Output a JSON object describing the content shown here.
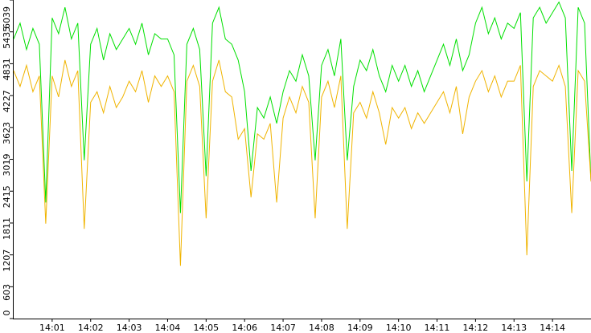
{
  "chart_data": {
    "type": "line",
    "x": [
      "14:00:00",
      "14:00:10",
      "14:00:20",
      "14:00:30",
      "14:00:40",
      "14:00:50",
      "14:01:00",
      "14:01:10",
      "14:01:20",
      "14:01:30",
      "14:01:40",
      "14:01:50",
      "14:02:00",
      "14:02:10",
      "14:02:20",
      "14:02:30",
      "14:02:40",
      "14:02:50",
      "14:03:00",
      "14:03:10",
      "14:03:20",
      "14:03:30",
      "14:03:40",
      "14:03:50",
      "14:04:00",
      "14:04:10",
      "14:04:20",
      "14:04:30",
      "14:04:40",
      "14:04:50",
      "14:05:00",
      "14:05:10",
      "14:05:20",
      "14:05:30",
      "14:05:40",
      "14:05:50",
      "14:06:00",
      "14:06:10",
      "14:06:20",
      "14:06:30",
      "14:06:40",
      "14:06:50",
      "14:07:00",
      "14:07:10",
      "14:07:20",
      "14:07:30",
      "14:07:40",
      "14:07:50",
      "14:08:00",
      "14:08:10",
      "14:08:20",
      "14:08:30",
      "14:08:40",
      "14:08:50",
      "14:09:00",
      "14:09:10",
      "14:09:20",
      "14:09:30",
      "14:09:40",
      "14:09:50",
      "14:10:00",
      "14:10:10",
      "14:10:20",
      "14:10:30",
      "14:10:40",
      "14:10:50",
      "14:11:00",
      "14:11:10",
      "14:11:20",
      "14:11:30",
      "14:11:40",
      "14:11:50",
      "14:12:00",
      "14:12:10",
      "14:12:20",
      "14:12:30",
      "14:12:40",
      "14:12:50",
      "14:13:00",
      "14:13:10",
      "14:13:20",
      "14:13:30",
      "14:13:40",
      "14:13:50",
      "14:14:00",
      "14:14:10",
      "14:14:20",
      "14:14:30",
      "14:14:40",
      "14:14:50",
      "14:15:00"
    ],
    "xlim": [
      "14:00:00",
      "14:15:00"
    ],
    "xticks": [
      "14:01",
      "14:02",
      "14:03",
      "14:04",
      "14:05",
      "14:06",
      "14:07",
      "14:08",
      "14:09",
      "14:10",
      "14:11",
      "14:12",
      "14:13",
      "14:14"
    ],
    "ylim": [
      0,
      6039
    ],
    "yticks": [
      0,
      603,
      1207,
      1811,
      2415,
      3019,
      3623,
      4227,
      4831,
      5435,
      6039
    ],
    "series": [
      {
        "color": "#00e000",
        "values": [
          5300,
          5600,
          5100,
          5500,
          5200,
          2200,
          5700,
          5400,
          5900,
          5300,
          5600,
          3000,
          5200,
          5500,
          4900,
          5400,
          5100,
          5300,
          5500,
          5200,
          5600,
          5000,
          5400,
          5300,
          5300,
          5000,
          2000,
          5200,
          5500,
          5100,
          2700,
          5600,
          5900,
          5300,
          5200,
          4900,
          4300,
          2800,
          4000,
          3800,
          4200,
          3700,
          4300,
          4700,
          4500,
          5000,
          4600,
          3000,
          4800,
          5100,
          4600,
          5300,
          3000,
          4400,
          4900,
          4700,
          5100,
          4600,
          4300,
          4800,
          4500,
          4800,
          4400,
          4700,
          4300,
          4600,
          4900,
          5200,
          4800,
          5300,
          4700,
          5000,
          5600,
          5900,
          5400,
          5700,
          5300,
          5600,
          5500,
          5800,
          2600,
          5700,
          5900,
          5600,
          5800,
          6000,
          5700,
          2800,
          5900,
          5600,
          2600
        ]
      },
      {
        "color": "#f0b400",
        "values": [
          4700,
          4400,
          4800,
          4300,
          4600,
          1800,
          4600,
          4200,
          4900,
          4400,
          4700,
          1700,
          4100,
          4300,
          3900,
          4400,
          4000,
          4200,
          4500,
          4300,
          4700,
          4100,
          4600,
          4400,
          4600,
          4300,
          1000,
          4500,
          4800,
          4400,
          1900,
          4500,
          4900,
          4300,
          4200,
          3400,
          3600,
          2300,
          3500,
          3400,
          3700,
          2200,
          3800,
          4200,
          3900,
          4400,
          4100,
          1900,
          4200,
          4500,
          4000,
          4600,
          1700,
          3900,
          4100,
          3800,
          4300,
          3900,
          3300,
          4000,
          3800,
          4000,
          3600,
          3900,
          3700,
          3900,
          4100,
          4300,
          3900,
          4400,
          3500,
          4200,
          4500,
          4700,
          4300,
          4600,
          4200,
          4500,
          4500,
          4800,
          1200,
          4400,
          4700,
          4600,
          4500,
          4800,
          4400,
          2000,
          4700,
          4500,
          2600
        ]
      }
    ]
  }
}
